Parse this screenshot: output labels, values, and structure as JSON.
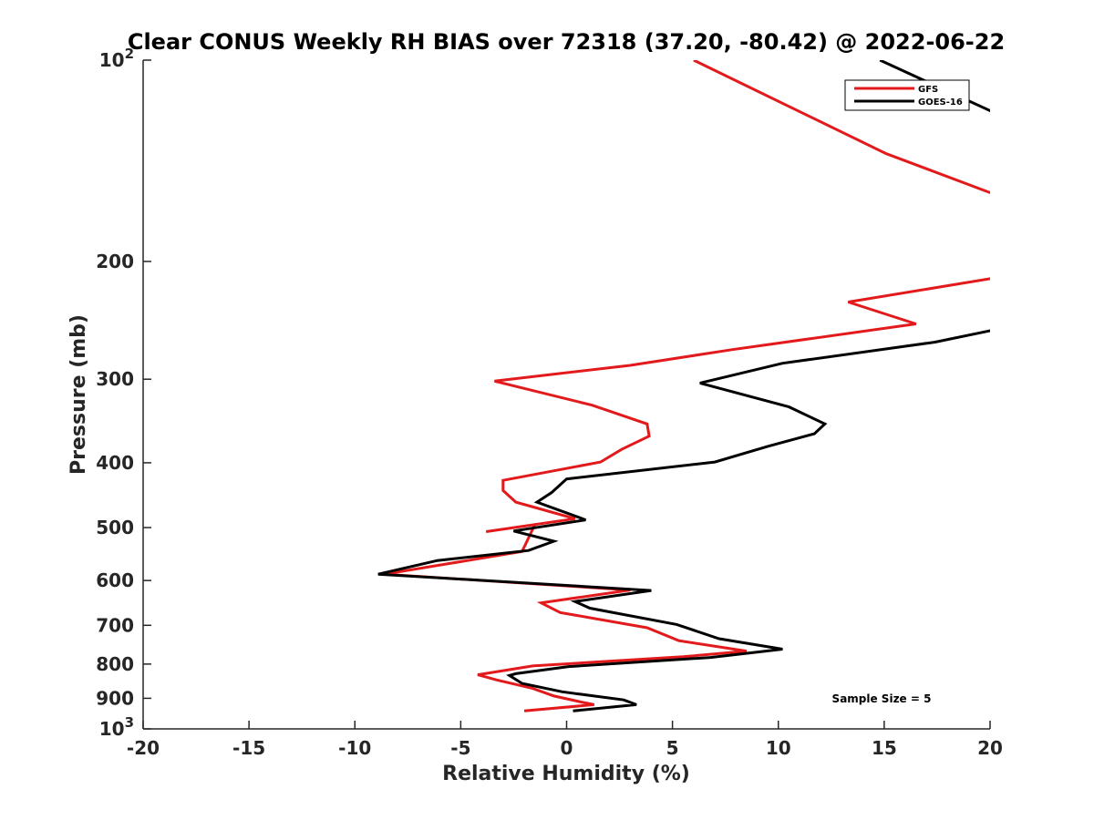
{
  "chart_data": {
    "type": "line",
    "title": "Clear CONUS Weekly RH BIAS over 72318 (37.20, -80.42) @ 2022-06-22",
    "xlabel": "Relative Humidity (%)",
    "ylabel": "Pressure (mb)",
    "xlim": [
      -20,
      20
    ],
    "ylim": [
      100,
      1000
    ],
    "y_scale": "log",
    "y_reversed": true,
    "x_ticks": [
      -20,
      -15,
      -10,
      -5,
      0,
      5,
      10,
      15,
      20
    ],
    "x_tick_labels": [
      "-20",
      "-15",
      "-10",
      "-5",
      "0",
      "5",
      "10",
      "15",
      "20"
    ],
    "y_ticks": [
      100,
      200,
      300,
      400,
      500,
      600,
      700,
      800,
      900,
      1000
    ],
    "y_tick_labels": [
      {
        "base": "10",
        "exp": "2"
      },
      {
        "base": "200",
        "exp": ""
      },
      {
        "base": "300",
        "exp": ""
      },
      {
        "base": "400",
        "exp": ""
      },
      {
        "base": "500",
        "exp": ""
      },
      {
        "base": "600",
        "exp": ""
      },
      {
        "base": "700",
        "exp": ""
      },
      {
        "base": "800",
        "exp": ""
      },
      {
        "base": "900",
        "exp": ""
      },
      {
        "base": "10",
        "exp": "3"
      }
    ],
    "grid": false,
    "legend_position": "top-right",
    "annotation": "Sample Size = 5",
    "series": [
      {
        "name": "GFS",
        "color": "#e31a1c",
        "x": [
          6.0,
          15.1,
          20.5,
          20.5,
          13.3,
          16.5,
          7.8,
          3.0,
          -3.4,
          1.2,
          3.8,
          3.9,
          2.6,
          1.6,
          -3.0,
          -3.0,
          -2.4,
          0.4,
          -3.8,
          -1.5,
          -2.1,
          -8.6,
          3.0,
          -1.2,
          -0.3,
          3.8,
          5.3,
          8.5,
          5.5,
          -1.6,
          -4.2,
          -3.3,
          -1.6,
          -0.6,
          0.7,
          1.3,
          -2.0
        ],
        "y": [
          100,
          138,
          160,
          211,
          230,
          248,
          271,
          286,
          302,
          328,
          350,
          365,
          382,
          399,
          425,
          440,
          458,
          485,
          507,
          495,
          543,
          587,
          620,
          648,
          670,
          706,
          738,
          765,
          780,
          805,
          830,
          845,
          870,
          893,
          912,
          920,
          940
        ]
      },
      {
        "name": "GOES-16",
        "color": "#000000",
        "x": [
          14.8,
          20.5,
          20.5,
          17.4,
          10.2,
          6.3,
          10.5,
          12.2,
          11.7,
          9.5,
          7.0,
          0.0,
          -0.7,
          -1.4,
          0.9,
          -2.5,
          -0.6,
          -1.8,
          -6.1,
          -8.9,
          4.0,
          0.4,
          1.1,
          5.2,
          7.2,
          10.2,
          6.8,
          0.1,
          -2.4,
          -2.7,
          -2.1,
          -0.2,
          2.7,
          3.3,
          0.3
        ],
        "y": [
          100,
          121,
          252,
          264,
          284,
          304,
          330,
          350,
          362,
          378,
          399,
          423,
          443,
          458,
          487,
          506,
          524,
          541,
          560,
          587,
          621,
          645,
          660,
          698,
          733,
          760,
          782,
          807,
          827,
          832,
          855,
          880,
          905,
          920,
          940
        ]
      }
    ]
  }
}
